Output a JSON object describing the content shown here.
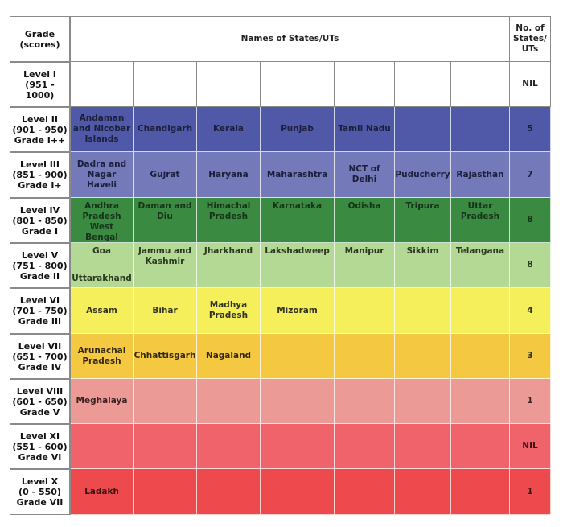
{
  "header": {
    "grade": "Grade (scores)",
    "names": "Names of States/UTs",
    "count": "No. of States/ UTs"
  },
  "rows": [
    {
      "grade": [
        "Level I",
        "(951 - 1000)"
      ],
      "color": "#ffffff",
      "text": "#111111",
      "cells": [
        [],
        [],
        [],
        [],
        [],
        [],
        []
      ],
      "count": "NIL"
    },
    {
      "grade": [
        "Level II",
        "(901 - 950)",
        "Grade I++"
      ],
      "color": "#5059a8",
      "text": "#1b1f3a",
      "cells": [
        [
          "Andaman and Nicobar Islands"
        ],
        [
          "Chandigarh"
        ],
        [
          "Kerala"
        ],
        [
          "Punjab"
        ],
        [
          "Tamil Nadu"
        ],
        [],
        []
      ],
      "count": "5"
    },
    {
      "grade": [
        "Level III",
        "(851 - 900)",
        "Grade I+"
      ],
      "color": "#7479b9",
      "text": "#1b1f3a",
      "cells": [
        [
          "Dadra and Nagar Haveli"
        ],
        [
          "Gujrat"
        ],
        [
          "Haryana"
        ],
        [
          "Maharashtra"
        ],
        [
          "NCT of Delhi"
        ],
        [
          "Puducherry"
        ],
        [
          "Rajasthan"
        ]
      ],
      "count": "7"
    },
    {
      "grade": [
        "Level IV",
        "(801 - 850)",
        "Grade I"
      ],
      "color": "#3a8a42",
      "text": "#17331a",
      "cells": [
        [
          "Andhra Pradesh",
          "West Bengal"
        ],
        [
          "Daman and Diu"
        ],
        [
          "Himachal Pradesh"
        ],
        [
          "Karnataka"
        ],
        [
          "Odisha"
        ],
        [
          "Tripura"
        ],
        [
          "Uttar Pradesh"
        ]
      ],
      "count": "8"
    },
    {
      "grade": [
        "Level V",
        "(751 - 800)",
        "Grade II"
      ],
      "color": "#b3d995",
      "text": "#2a3a20",
      "cells": [
        [
          "Goa",
          "Uttarakhand"
        ],
        [
          "Jammu and Kashmir"
        ],
        [
          "Jharkhand"
        ],
        [
          "Lakshadweep"
        ],
        [
          "Manipur"
        ],
        [
          "Sikkim"
        ],
        [
          "Telangana"
        ]
      ],
      "count": "8"
    },
    {
      "grade": [
        "Level VI",
        "(701 - 750)",
        "Grade III"
      ],
      "color": "#f4ef5a",
      "text": "#333322",
      "cells": [
        [
          "Assam"
        ],
        [
          "Bihar"
        ],
        [
          "Madhya Pradesh"
        ],
        [
          "Mizoram"
        ],
        [],
        [],
        []
      ],
      "count": "4"
    },
    {
      "grade": [
        "Level VII",
        "(651 - 700)",
        "Grade IV"
      ],
      "color": "#f5c842",
      "text": "#332a10",
      "cells": [
        [
          "Arunachal Pradesh"
        ],
        [
          "Chhattisgarh"
        ],
        [
          "Nagaland"
        ],
        [],
        [],
        [],
        []
      ],
      "count": "3"
    },
    {
      "grade": [
        "Level VIII",
        "(601 - 650)",
        "Grade V"
      ],
      "color": "#ec9a96",
      "text": "#3a2222",
      "cells": [
        [
          "Meghalaya"
        ],
        [],
        [],
        [],
        [],
        [],
        []
      ],
      "count": "1"
    },
    {
      "grade": [
        "Level XI",
        "(551 - 600)",
        "Grade VI"
      ],
      "color": "#f0636a",
      "text": "#3a1515",
      "cells": [
        [],
        [],
        [],
        [],
        [],
        [],
        []
      ],
      "count": "NIL"
    },
    {
      "grade": [
        "Level X",
        "(0 - 550)",
        "Grade VII"
      ],
      "color": "#ee4a4e",
      "text": "#3a1212",
      "cells": [
        [
          "Ladakh"
        ],
        [],
        [],
        [],
        [],
        [],
        []
      ],
      "count": "1"
    }
  ]
}
